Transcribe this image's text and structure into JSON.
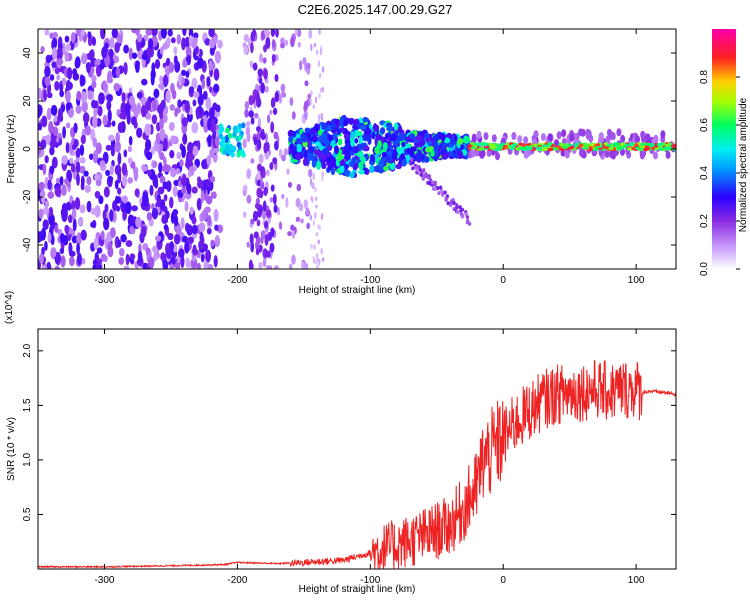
{
  "title": "C2E6.2025.147.00.29.G27",
  "chart_data": [
    {
      "type": "heatmap",
      "xlabel": "Height of straight line (km)",
      "ylabel": "Frequency (Hz)",
      "xlim": [
        -350,
        130
      ],
      "ylim": [
        -50,
        50
      ],
      "x_ticks": [
        -300,
        -200,
        -100,
        0,
        100
      ],
      "y_ticks": [
        -40,
        -20,
        0,
        20,
        40
      ],
      "colorbar": {
        "label": "Normalized spectral amplitude",
        "range": [
          0.0,
          1.0
        ],
        "ticks": [
          0.0,
          0.2,
          0.4,
          0.6,
          0.8
        ],
        "tick_labels": [
          "0.0",
          "0.2",
          "0.4",
          "0.6",
          "0.8"
        ],
        "colors": [
          "#ffffff",
          "#d0a8ff",
          "#8a2be2",
          "#2a00ff",
          "#00c8ff",
          "#00ff80",
          "#c8ff00",
          "#ffcc00",
          "#ff0040",
          "#ff00aa"
        ]
      },
      "regions": [
        {
          "x_range": [
            -350,
            -213
          ],
          "freq_range": [
            -50,
            50
          ],
          "amplitude": 0.2,
          "description_level": "scattered"
        },
        {
          "x_range": [
            -213,
            -195
          ],
          "freq_range": [
            -3,
            10
          ],
          "amplitude": 0.5
        },
        {
          "x_range": [
            -195,
            -145
          ],
          "freq_range": [
            -50,
            50
          ],
          "amplitude": 0.12
        },
        {
          "x_range": [
            -160,
            -25
          ],
          "freq_range": [
            -5,
            12
          ],
          "amplitude": 0.45
        },
        {
          "x_range": [
            -25,
            130
          ],
          "freq_range": [
            -1,
            3
          ],
          "amplitude": 0.7
        }
      ]
    },
    {
      "type": "line",
      "xlabel": "Height of straight line (km)",
      "ylabel": "SNR (10 * v/v)",
      "y_multiplier": "(x10^4)",
      "xlim": [
        -350,
        130
      ],
      "ylim": [
        0,
        2.2
      ],
      "x_ticks": [
        -300,
        -200,
        -100,
        0,
        100
      ],
      "y_ticks": [
        0.5,
        1.0,
        1.5,
        2.0
      ],
      "color": "#ee2222",
      "series": [
        {
          "x": [
            -350,
            -300,
            -250,
            -210,
            -200,
            -170,
            -150,
            -120,
            -100,
            -80,
            -60,
            -40,
            -30,
            -20,
            -15,
            -10,
            0,
            10,
            20,
            30,
            40,
            50,
            60,
            70,
            80,
            90,
            100,
            105,
            110,
            120,
            130
          ],
          "y": [
            0.02,
            0.02,
            0.03,
            0.04,
            0.06,
            0.05,
            0.06,
            0.08,
            0.15,
            0.22,
            0.3,
            0.4,
            0.55,
            0.75,
            1.0,
            1.05,
            1.2,
            1.35,
            1.45,
            1.55,
            1.6,
            1.62,
            1.63,
            1.65,
            1.62,
            1.65,
            1.65,
            1.62,
            1.63,
            1.62,
            1.6
          ]
        }
      ]
    }
  ]
}
